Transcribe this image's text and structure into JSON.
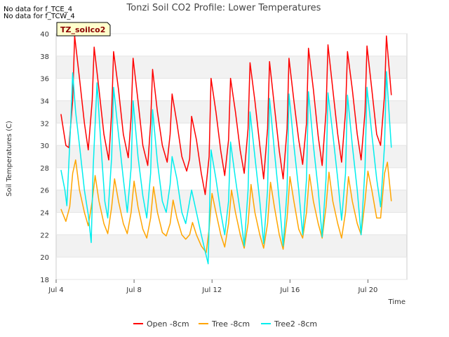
{
  "notes": [
    "No data for f_TCE_4",
    "No data for f_TCW_4"
  ],
  "badge": "TZ_soilco2",
  "chart_data": {
    "type": "line",
    "title": "Tonzi Soil CO2 Profile: Lower Temperatures",
    "xlabel": "Time",
    "ylabel": "Soil Temperatures (C)",
    "xlim": [
      4.0,
      22.0
    ],
    "ylim": [
      18,
      40
    ],
    "yticks": [
      18,
      20,
      22,
      24,
      26,
      28,
      30,
      32,
      34,
      36,
      38,
      40
    ],
    "xticks": [
      {
        "value": 4,
        "label": "Jul 4"
      },
      {
        "value": 8,
        "label": "Jul 8"
      },
      {
        "value": 12,
        "label": "Jul 12"
      },
      {
        "value": 16,
        "label": "Jul 16"
      },
      {
        "value": 20,
        "label": "Jul 20"
      }
    ],
    "grid": true,
    "legend_position": "bottom",
    "series": [
      {
        "name": "Open -8cm",
        "color": "#ff0000",
        "x": [
          4.25,
          4.5,
          4.65,
          4.85,
          4.95,
          5.2,
          5.45,
          5.65,
          5.85,
          5.95,
          6.2,
          6.45,
          6.7,
          6.85,
          6.95,
          7.2,
          7.45,
          7.7,
          7.85,
          7.95,
          8.2,
          8.45,
          8.7,
          8.85,
          8.95,
          9.2,
          9.45,
          9.7,
          9.85,
          9.95,
          10.2,
          10.45,
          10.7,
          10.85,
          10.95,
          11.2,
          11.45,
          11.65,
          11.85,
          11.95,
          12.2,
          12.45,
          12.65,
          12.85,
          12.95,
          13.2,
          13.45,
          13.65,
          13.85,
          13.95,
          14.2,
          14.45,
          14.65,
          14.85,
          14.95,
          15.2,
          15.45,
          15.65,
          15.85,
          15.95,
          16.2,
          16.45,
          16.65,
          16.85,
          16.95,
          17.2,
          17.45,
          17.65,
          17.85,
          17.95,
          18.2,
          18.45,
          18.65,
          18.85,
          18.95,
          19.2,
          19.45,
          19.65,
          19.85,
          19.95,
          20.2,
          20.45,
          20.65,
          20.85,
          20.95,
          21.2
        ],
        "y": [
          32.8,
          30.0,
          29.8,
          34.0,
          39.8,
          36.0,
          32.0,
          29.6,
          34.0,
          38.8,
          35.0,
          31.0,
          28.7,
          33.0,
          38.4,
          35.0,
          31.0,
          28.9,
          32.5,
          37.8,
          34.0,
          30.0,
          28.2,
          32.0,
          36.8,
          33.0,
          30.0,
          28.5,
          31.0,
          34.6,
          32.0,
          29.0,
          27.7,
          28.8,
          32.6,
          30.5,
          27.5,
          25.6,
          29.0,
          36.0,
          33.0,
          29.5,
          27.3,
          30.5,
          36.0,
          33.0,
          29.5,
          27.5,
          31.5,
          37.4,
          34.0,
          30.0,
          27.0,
          31.5,
          37.5,
          33.5,
          29.5,
          27.0,
          31.5,
          37.8,
          34.0,
          30.5,
          28.3,
          32.0,
          38.7,
          35.0,
          30.8,
          28.2,
          33.0,
          39.0,
          35.0,
          31.0,
          28.5,
          33.0,
          38.4,
          35.0,
          31.0,
          28.7,
          33.0,
          38.9,
          35.0,
          31.0,
          30.0,
          34.5,
          39.8,
          34.5
        ]
      },
      {
        "name": "Tree -8cm",
        "color": "#ffa500",
        "x": [
          4.25,
          4.5,
          4.7,
          4.85,
          5.0,
          5.2,
          5.45,
          5.65,
          5.85,
          6.0,
          6.2,
          6.45,
          6.65,
          6.85,
          7.0,
          7.2,
          7.45,
          7.65,
          7.85,
          8.0,
          8.2,
          8.45,
          8.65,
          8.85,
          9.0,
          9.2,
          9.45,
          9.65,
          9.85,
          10.0,
          10.2,
          10.45,
          10.65,
          10.85,
          11.0,
          11.2,
          11.45,
          11.7,
          11.85,
          12.0,
          12.2,
          12.45,
          12.65,
          12.85,
          13.0,
          13.2,
          13.45,
          13.65,
          13.85,
          14.0,
          14.2,
          14.45,
          14.65,
          14.85,
          15.0,
          15.2,
          15.45,
          15.65,
          15.85,
          16.0,
          16.2,
          16.45,
          16.65,
          16.85,
          17.0,
          17.2,
          17.45,
          17.65,
          17.85,
          18.0,
          18.2,
          18.45,
          18.65,
          18.85,
          19.0,
          19.2,
          19.45,
          19.65,
          19.85,
          20.0,
          20.2,
          20.45,
          20.65,
          20.85,
          21.0,
          21.2
        ],
        "y": [
          24.3,
          23.2,
          24.5,
          27.5,
          28.7,
          26.0,
          24.0,
          22.8,
          25.0,
          27.3,
          25.0,
          23.0,
          22.1,
          24.5,
          27.0,
          25.0,
          23.0,
          22.1,
          24.0,
          26.8,
          24.5,
          22.5,
          21.7,
          23.5,
          26.3,
          24.0,
          22.2,
          21.9,
          23.0,
          25.1,
          23.5,
          22.0,
          21.6,
          22.0,
          23.1,
          22.0,
          21.0,
          20.4,
          22.5,
          25.7,
          24.0,
          22.0,
          20.9,
          23.0,
          26.0,
          24.0,
          22.0,
          20.8,
          23.0,
          26.5,
          24.0,
          22.0,
          20.8,
          23.0,
          26.7,
          24.5,
          22.0,
          20.7,
          23.5,
          27.2,
          25.0,
          22.5,
          21.7,
          24.0,
          27.4,
          25.0,
          23.0,
          21.7,
          24.5,
          27.6,
          25.0,
          23.0,
          21.7,
          24.0,
          27.2,
          25.0,
          23.0,
          22.0,
          25.0,
          27.7,
          26.0,
          23.5,
          23.5,
          27.5,
          28.5,
          25.0
        ]
      },
      {
        "name": "Tree2 -8cm",
        "color": "#00eeee",
        "x": [
          4.25,
          4.45,
          4.55,
          4.75,
          4.85,
          5.0,
          5.2,
          5.45,
          5.65,
          5.8,
          5.9,
          6.1,
          6.3,
          6.5,
          6.65,
          6.85,
          6.95,
          7.2,
          7.45,
          7.65,
          7.85,
          7.95,
          8.2,
          8.45,
          8.65,
          8.85,
          8.95,
          9.2,
          9.45,
          9.65,
          9.85,
          9.95,
          10.2,
          10.45,
          10.65,
          10.85,
          10.95,
          11.2,
          11.45,
          11.65,
          11.8,
          11.95,
          12.2,
          12.45,
          12.65,
          12.85,
          12.95,
          13.2,
          13.45,
          13.65,
          13.85,
          13.95,
          14.2,
          14.45,
          14.65,
          14.85,
          14.95,
          15.2,
          15.45,
          15.65,
          15.85,
          15.95,
          16.2,
          16.45,
          16.65,
          16.85,
          16.95,
          17.2,
          17.45,
          17.65,
          17.85,
          17.95,
          18.2,
          18.45,
          18.65,
          18.85,
          18.95,
          19.2,
          19.45,
          19.65,
          19.85,
          19.95,
          20.2,
          20.45,
          20.65,
          20.85,
          20.95,
          21.2
        ],
        "y": [
          27.8,
          26.0,
          24.6,
          32.0,
          36.5,
          33.0,
          30.0,
          26.0,
          23.8,
          21.3,
          28.0,
          35.6,
          30.0,
          25.0,
          23.5,
          29.0,
          35.2,
          31.0,
          27.0,
          24.0,
          28.0,
          34.0,
          29.0,
          25.5,
          23.5,
          27.5,
          33.2,
          28.5,
          25.0,
          24.0,
          26.5,
          29.0,
          27.0,
          24.0,
          23.0,
          25.0,
          26.0,
          24.0,
          22.0,
          20.5,
          19.4,
          29.6,
          27.0,
          24.0,
          22.0,
          25.0,
          30.3,
          27.0,
          24.0,
          21.0,
          26.0,
          33.0,
          29.0,
          25.0,
          21.2,
          26.0,
          34.2,
          29.5,
          25.0,
          21.0,
          26.0,
          34.6,
          30.0,
          26.0,
          22.0,
          27.0,
          34.8,
          30.0,
          26.0,
          21.8,
          27.0,
          34.7,
          31.0,
          27.0,
          23.3,
          27.5,
          34.5,
          30.0,
          26.0,
          22.0,
          28.0,
          35.2,
          31.0,
          27.0,
          24.5,
          30.0,
          36.6,
          29.8
        ]
      }
    ]
  }
}
